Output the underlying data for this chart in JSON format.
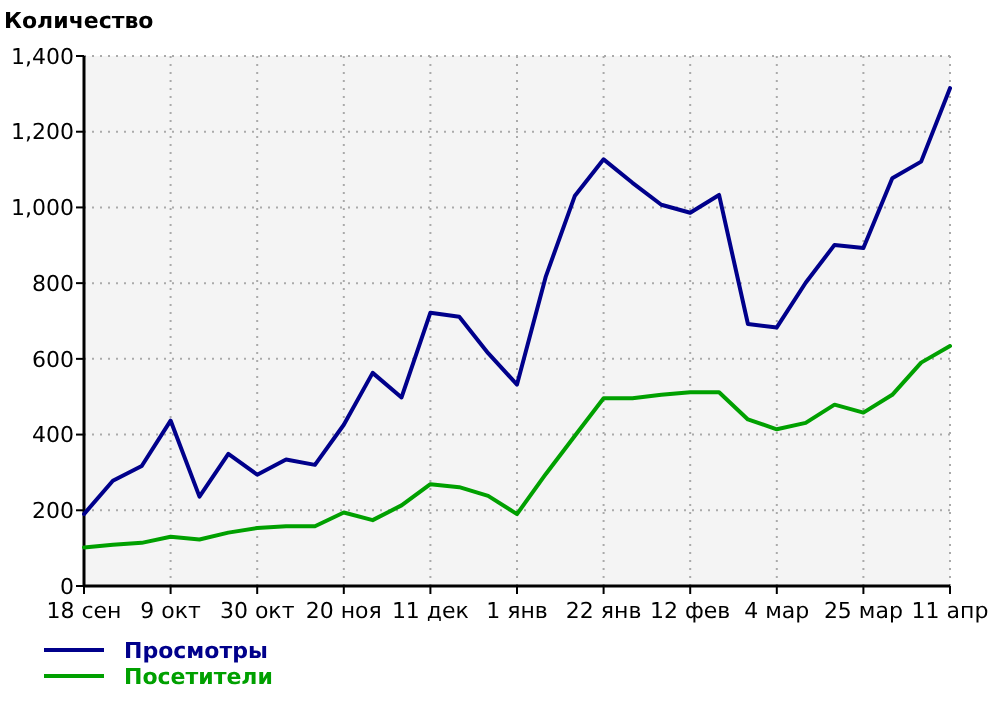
{
  "chart_data": {
    "type": "line",
    "ylabel": "Количество",
    "categories": [
      "18 сен",
      null,
      null,
      "9 окт",
      null,
      null,
      "30 окт",
      null,
      null,
      "20 ноя",
      null,
      null,
      "11 дек",
      null,
      null,
      "1 янв",
      null,
      null,
      "22 янв",
      null,
      null,
      "12 фев",
      null,
      null,
      "4 мар",
      null,
      null,
      "25 мар",
      null,
      null,
      "11 апр"
    ],
    "series": [
      {
        "name": "Просмотры",
        "color": "#00008b",
        "values": [
          190,
          278,
          317,
          437,
          236,
          349,
          294,
          334,
          320,
          426,
          563,
          498,
          722,
          711,
          615,
          532,
          818,
          1030,
          1127,
          1065,
          1007,
          986,
          1033,
          692,
          683,
          801,
          901,
          893,
          1077,
          1121,
          1315
        ]
      },
      {
        "name": "Посетители",
        "color": "#00a000",
        "values": [
          102,
          109,
          114,
          130,
          123,
          141,
          153,
          158,
          158,
          194,
          174,
          213,
          269,
          261,
          238,
          190,
          296,
          396,
          496,
          496,
          505,
          512,
          512,
          440,
          414,
          431,
          479,
          458,
          505,
          590,
          634
        ]
      }
    ],
    "ylim": [
      0,
      1400
    ],
    "yticks": [
      0,
      {
        "value": 200,
        "label": "200"
      },
      {
        "value": 400,
        "label": "400"
      },
      {
        "value": 600,
        "label": "600"
      },
      {
        "value": 800,
        "label": "800"
      },
      {
        "value": 1000,
        "label": "1,000"
      },
      {
        "value": 1200,
        "label": "1,200"
      },
      {
        "value": 1400,
        "label": "1,400"
      }
    ],
    "grid": true,
    "legend": "bottom left",
    "line_style": "solid",
    "marker": "none"
  }
}
